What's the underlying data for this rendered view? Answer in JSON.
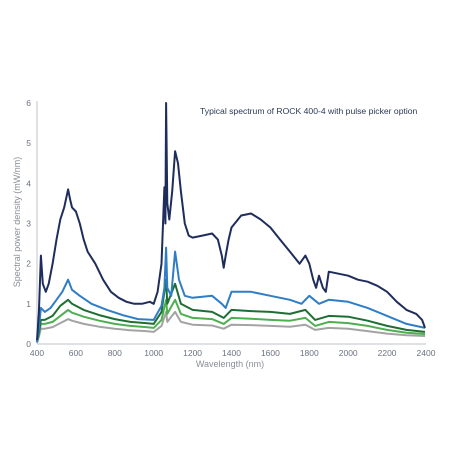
{
  "chart_data": {
    "type": "line",
    "title": "Typical spectrum of ROCK 400-4 with pulse picker option",
    "xlabel": "Wavelength (nm)",
    "ylabel": "Spectral power density (mW/nm)",
    "xlim": [
      400,
      2400
    ],
    "ylim": [
      0,
      6
    ],
    "xticks": [
      "400",
      "600",
      "800",
      "1000",
      "1200",
      "1400",
      "1600",
      "1800",
      "2000",
      "2200",
      "2400"
    ],
    "yticks": [
      "0",
      "1",
      "2",
      "3",
      "4",
      "5",
      "6"
    ],
    "grid": false,
    "series": [
      {
        "color": "#1f2d5c",
        "points": [
          [
            400,
            0.1
          ],
          [
            410,
            0.8
          ],
          [
            420,
            2.2
          ],
          [
            430,
            1.5
          ],
          [
            445,
            1.3
          ],
          [
            460,
            1.5
          ],
          [
            480,
            2.0
          ],
          [
            500,
            2.6
          ],
          [
            520,
            3.1
          ],
          [
            540,
            3.4
          ],
          [
            560,
            3.85
          ],
          [
            570,
            3.6
          ],
          [
            580,
            3.4
          ],
          [
            600,
            3.3
          ],
          [
            620,
            3.0
          ],
          [
            640,
            2.6
          ],
          [
            660,
            2.3
          ],
          [
            700,
            2.0
          ],
          [
            740,
            1.6
          ],
          [
            780,
            1.3
          ],
          [
            820,
            1.15
          ],
          [
            860,
            1.05
          ],
          [
            900,
            1.0
          ],
          [
            940,
            1.0
          ],
          [
            980,
            1.05
          ],
          [
            1000,
            1.0
          ],
          [
            1020,
            1.3
          ],
          [
            1040,
            2.0
          ],
          [
            1055,
            3.9
          ],
          [
            1060,
            3.0
          ],
          [
            1064,
            6.0
          ],
          [
            1070,
            3.5
          ],
          [
            1080,
            3.1
          ],
          [
            1095,
            3.8
          ],
          [
            1110,
            4.8
          ],
          [
            1125,
            4.5
          ],
          [
            1140,
            3.8
          ],
          [
            1160,
            3.0
          ],
          [
            1180,
            2.7
          ],
          [
            1200,
            2.65
          ],
          [
            1250,
            2.7
          ],
          [
            1300,
            2.75
          ],
          [
            1330,
            2.6
          ],
          [
            1350,
            2.2
          ],
          [
            1360,
            1.9
          ],
          [
            1370,
            2.2
          ],
          [
            1385,
            2.6
          ],
          [
            1400,
            2.9
          ],
          [
            1450,
            3.2
          ],
          [
            1500,
            3.25
          ],
          [
            1550,
            3.1
          ],
          [
            1600,
            2.9
          ],
          [
            1650,
            2.6
          ],
          [
            1700,
            2.3
          ],
          [
            1750,
            2.0
          ],
          [
            1780,
            2.2
          ],
          [
            1800,
            2.0
          ],
          [
            1820,
            1.6
          ],
          [
            1835,
            1.4
          ],
          [
            1850,
            1.7
          ],
          [
            1870,
            1.4
          ],
          [
            1885,
            1.3
          ],
          [
            1900,
            1.8
          ],
          [
            1950,
            1.75
          ],
          [
            2000,
            1.7
          ],
          [
            2050,
            1.6
          ],
          [
            2100,
            1.55
          ],
          [
            2150,
            1.45
          ],
          [
            2200,
            1.3
          ],
          [
            2250,
            1.05
          ],
          [
            2300,
            0.85
          ],
          [
            2350,
            0.75
          ],
          [
            2380,
            0.6
          ],
          [
            2395,
            0.4
          ]
        ]
      },
      {
        "color": "#2f7dc6",
        "points": [
          [
            400,
            0.05
          ],
          [
            410,
            0.4
          ],
          [
            420,
            0.9
          ],
          [
            440,
            0.8
          ],
          [
            470,
            0.9
          ],
          [
            500,
            1.1
          ],
          [
            530,
            1.3
          ],
          [
            560,
            1.6
          ],
          [
            580,
            1.35
          ],
          [
            620,
            1.2
          ],
          [
            680,
            1.0
          ],
          [
            760,
            0.85
          ],
          [
            840,
            0.72
          ],
          [
            920,
            0.62
          ],
          [
            1000,
            0.6
          ],
          [
            1040,
            0.95
          ],
          [
            1055,
            1.4
          ],
          [
            1064,
            2.4
          ],
          [
            1070,
            1.4
          ],
          [
            1090,
            1.2
          ],
          [
            1110,
            2.3
          ],
          [
            1130,
            1.6
          ],
          [
            1160,
            1.2
          ],
          [
            1200,
            1.15
          ],
          [
            1300,
            1.2
          ],
          [
            1350,
            1.0
          ],
          [
            1370,
            0.9
          ],
          [
            1400,
            1.3
          ],
          [
            1500,
            1.3
          ],
          [
            1600,
            1.2
          ],
          [
            1700,
            1.1
          ],
          [
            1760,
            1.0
          ],
          [
            1800,
            1.2
          ],
          [
            1850,
            1.0
          ],
          [
            1900,
            1.1
          ],
          [
            2000,
            1.05
          ],
          [
            2100,
            0.9
          ],
          [
            2200,
            0.7
          ],
          [
            2300,
            0.5
          ],
          [
            2395,
            0.4
          ]
        ]
      },
      {
        "color": "#1e6e33",
        "points": [
          [
            400,
            0.05
          ],
          [
            410,
            0.3
          ],
          [
            420,
            0.6
          ],
          [
            440,
            0.6
          ],
          [
            480,
            0.7
          ],
          [
            520,
            0.95
          ],
          [
            560,
            1.1
          ],
          [
            580,
            1.0
          ],
          [
            640,
            0.85
          ],
          [
            720,
            0.72
          ],
          [
            800,
            0.62
          ],
          [
            880,
            0.55
          ],
          [
            960,
            0.52
          ],
          [
            1000,
            0.5
          ],
          [
            1040,
            0.8
          ],
          [
            1064,
            1.6
          ],
          [
            1070,
            1.0
          ],
          [
            1110,
            1.5
          ],
          [
            1140,
            1.0
          ],
          [
            1200,
            0.85
          ],
          [
            1300,
            0.8
          ],
          [
            1360,
            0.65
          ],
          [
            1400,
            0.85
          ],
          [
            1500,
            0.82
          ],
          [
            1600,
            0.8
          ],
          [
            1700,
            0.75
          ],
          [
            1780,
            0.85
          ],
          [
            1830,
            0.6
          ],
          [
            1900,
            0.7
          ],
          [
            2000,
            0.68
          ],
          [
            2100,
            0.58
          ],
          [
            2200,
            0.45
          ],
          [
            2300,
            0.35
          ],
          [
            2395,
            0.3
          ]
        ]
      },
      {
        "color": "#4caf50",
        "points": [
          [
            400,
            0.05
          ],
          [
            410,
            0.25
          ],
          [
            420,
            0.5
          ],
          [
            440,
            0.5
          ],
          [
            480,
            0.55
          ],
          [
            520,
            0.7
          ],
          [
            560,
            0.85
          ],
          [
            580,
            0.78
          ],
          [
            640,
            0.68
          ],
          [
            720,
            0.58
          ],
          [
            800,
            0.5
          ],
          [
            880,
            0.45
          ],
          [
            960,
            0.42
          ],
          [
            1000,
            0.4
          ],
          [
            1040,
            0.6
          ],
          [
            1064,
            1.1
          ],
          [
            1070,
            0.75
          ],
          [
            1110,
            1.1
          ],
          [
            1140,
            0.75
          ],
          [
            1200,
            0.65
          ],
          [
            1300,
            0.62
          ],
          [
            1360,
            0.5
          ],
          [
            1400,
            0.65
          ],
          [
            1500,
            0.63
          ],
          [
            1600,
            0.6
          ],
          [
            1700,
            0.58
          ],
          [
            1780,
            0.65
          ],
          [
            1830,
            0.45
          ],
          [
            1900,
            0.55
          ],
          [
            2000,
            0.52
          ],
          [
            2100,
            0.45
          ],
          [
            2200,
            0.35
          ],
          [
            2300,
            0.28
          ],
          [
            2395,
            0.25
          ]
        ]
      },
      {
        "color": "#a3a3a3",
        "points": [
          [
            400,
            0.03
          ],
          [
            410,
            0.18
          ],
          [
            420,
            0.38
          ],
          [
            440,
            0.38
          ],
          [
            480,
            0.42
          ],
          [
            520,
            0.52
          ],
          [
            560,
            0.62
          ],
          [
            580,
            0.58
          ],
          [
            640,
            0.5
          ],
          [
            720,
            0.43
          ],
          [
            800,
            0.38
          ],
          [
            880,
            0.34
          ],
          [
            960,
            0.32
          ],
          [
            1000,
            0.3
          ],
          [
            1040,
            0.45
          ],
          [
            1064,
            0.8
          ],
          [
            1070,
            0.55
          ],
          [
            1110,
            0.8
          ],
          [
            1140,
            0.55
          ],
          [
            1200,
            0.48
          ],
          [
            1300,
            0.46
          ],
          [
            1360,
            0.38
          ],
          [
            1400,
            0.48
          ],
          [
            1500,
            0.47
          ],
          [
            1600,
            0.45
          ],
          [
            1700,
            0.43
          ],
          [
            1780,
            0.48
          ],
          [
            1830,
            0.35
          ],
          [
            1900,
            0.4
          ],
          [
            2000,
            0.38
          ],
          [
            2100,
            0.32
          ],
          [
            2200,
            0.26
          ],
          [
            2300,
            0.22
          ],
          [
            2395,
            0.2
          ]
        ]
      }
    ]
  }
}
